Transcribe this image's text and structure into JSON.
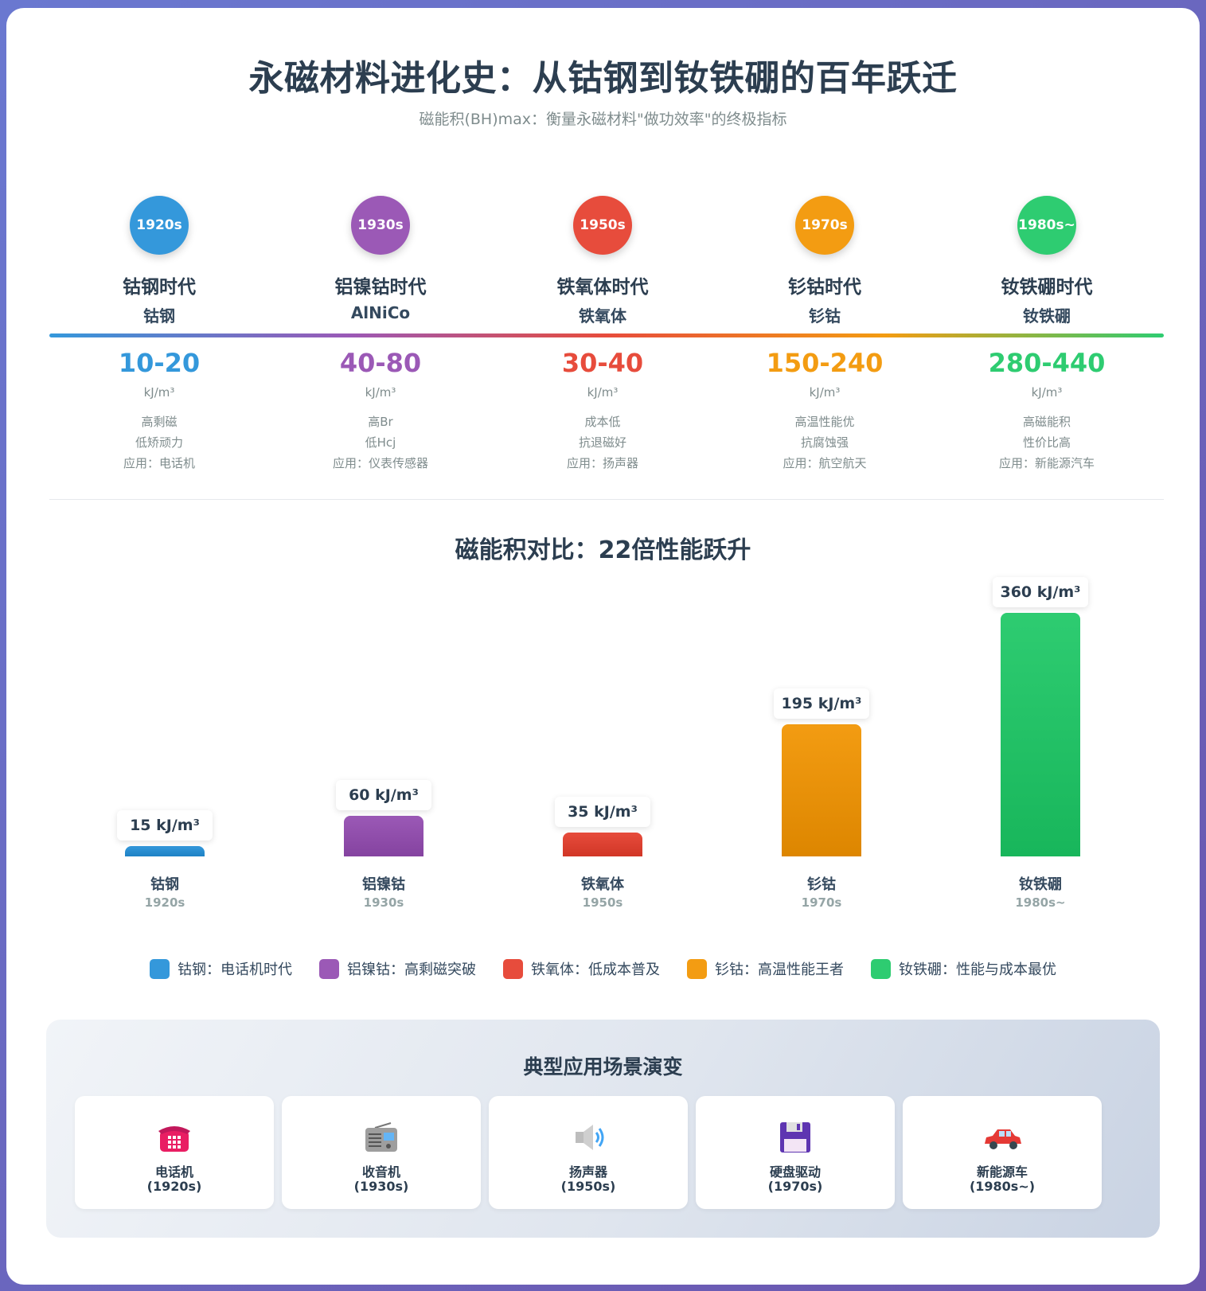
{
  "title": "永磁材料进化史：从钴钢到钕铁硼的百年跃迁",
  "subtitle": "磁能积(BH)max：衡量永磁材料\"做功效率\"的终极指标",
  "timeline": [
    {
      "year": "1920s",
      "era": "钴钢时代",
      "material": "钴钢",
      "range": "10-20",
      "unit": "kJ/m³",
      "features": [
        "高剩磁",
        "低矫顽力",
        "应用：电话机"
      ],
      "color": "#3498db"
    },
    {
      "year": "1930s",
      "era": "铝镍钴时代",
      "material": "AlNiCo",
      "range": "40-80",
      "unit": "kJ/m³",
      "features": [
        "高Br",
        "低Hcj",
        "应用：仪表传感器"
      ],
      "color": "#9b59b6"
    },
    {
      "year": "1950s",
      "era": "铁氧体时代",
      "material": "铁氧体",
      "range": "30-40",
      "unit": "kJ/m³",
      "features": [
        "成本低",
        "抗退磁好",
        "应用：扬声器"
      ],
      "color": "#e74c3c"
    },
    {
      "year": "1970s",
      "era": "钐钴时代",
      "material": "钐钴",
      "range": "150-240",
      "unit": "kJ/m³",
      "features": [
        "高温性能优",
        "抗腐蚀强",
        "应用：航空航天"
      ],
      "color": "#f39c12"
    },
    {
      "year": "1980s~",
      "era": "钕铁硼时代",
      "material": "钕铁硼",
      "range": "280-440",
      "unit": "kJ/m³",
      "features": [
        "高磁能积",
        "性价比高",
        "应用：新能源汽车"
      ],
      "color": "#2ecc71"
    }
  ],
  "chart_data": {
    "type": "bar",
    "title": "磁能积对比：22倍性能跃升",
    "categories": [
      "钴钢",
      "铝镍钴",
      "铁氧体",
      "钐钴",
      "钕铁硼"
    ],
    "years": [
      "1920s",
      "1930s",
      "1950s",
      "1970s",
      "1980s~"
    ],
    "values": [
      15,
      60,
      35,
      195,
      360
    ],
    "unit": "kJ/m³",
    "colors": [
      "#3498db",
      "#9b59b6",
      "#e74c3c",
      "#f39c12",
      "#2ecc71"
    ],
    "ylim": [
      0,
      360
    ],
    "legend": [
      {
        "label": "钴钢：电话机时代",
        "color": "#3498db"
      },
      {
        "label": "铝镍钴：高剩磁突破",
        "color": "#9b59b6"
      },
      {
        "label": "铁氧体：低成本普及",
        "color": "#e74c3c"
      },
      {
        "label": "钐钴：高温性能王者",
        "color": "#f39c12"
      },
      {
        "label": "钕铁硼：性能与成本最优",
        "color": "#2ecc71"
      }
    ]
  },
  "applications": {
    "title": "典型应用场景演变",
    "items": [
      {
        "icon": "telephone-icon",
        "name": "电话机",
        "year": "(1920s)"
      },
      {
        "icon": "radio-icon",
        "name": "收音机",
        "year": "(1930s)"
      },
      {
        "icon": "speaker-icon",
        "name": "扬声器",
        "year": "(1950s)"
      },
      {
        "icon": "floppy-disk-icon",
        "name": "硬盘驱动",
        "year": "(1970s)"
      },
      {
        "icon": "car-icon",
        "name": "新能源车",
        "year": "(1980s~)"
      }
    ]
  }
}
